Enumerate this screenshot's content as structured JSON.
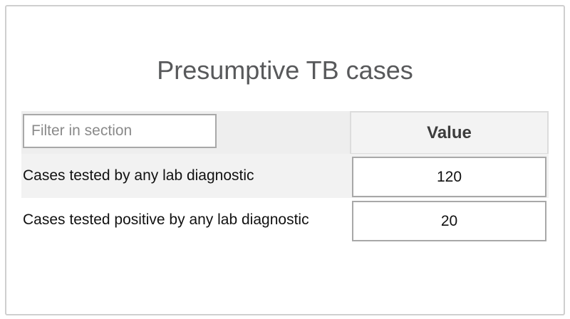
{
  "section": {
    "title": "Presumptive TB cases"
  },
  "filter": {
    "placeholder": "Filter in section",
    "value": ""
  },
  "table": {
    "value_header": "Value",
    "rows": [
      {
        "label": "Cases tested by any lab diagnostic",
        "value": "120"
      },
      {
        "label": "Cases tested positive by any lab diagnostic",
        "value": "20"
      }
    ]
  }
}
